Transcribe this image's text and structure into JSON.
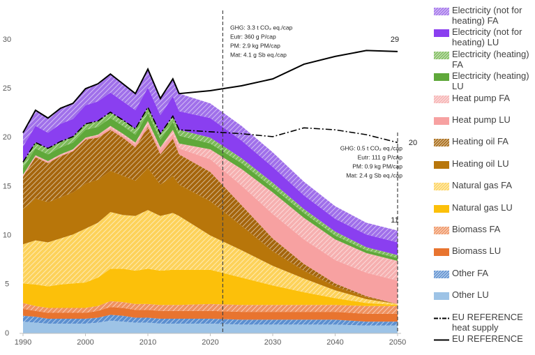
{
  "chart_data": {
    "type": "stacked-area",
    "x": [
      1990,
      1992,
      1994,
      1996,
      1998,
      2000,
      2002,
      2004,
      2006,
      2008,
      2010,
      2012,
      2014,
      2015,
      2020,
      2025,
      2030,
      2035,
      2040,
      2045,
      2050
    ],
    "xlim": [
      1990,
      2050
    ],
    "xticks": [
      1990,
      2000,
      2010,
      2020,
      2030,
      2040,
      2050
    ],
    "ylim": [
      0,
      30
    ],
    "yticks": [
      0,
      5,
      10,
      15,
      20,
      25,
      30
    ],
    "series": [
      {
        "name": "Other LU",
        "color": "#9dc3e6",
        "values": [
          1.2,
          1.1,
          1.0,
          1.0,
          1.0,
          1.0,
          1.1,
          1.3,
          1.2,
          1.1,
          1.1,
          1.0,
          1.0,
          1.0,
          1.0,
          0.9,
          0.9,
          0.9,
          0.9,
          0.8,
          0.8
        ]
      },
      {
        "name": "Other FA",
        "color": "#5b8fd0",
        "pattern": "hatch",
        "values": [
          0.6,
          0.6,
          0.5,
          0.5,
          0.5,
          0.5,
          0.5,
          0.6,
          0.6,
          0.5,
          0.5,
          0.5,
          0.5,
          0.5,
          0.5,
          0.5,
          0.5,
          0.5,
          0.5,
          0.4,
          0.4
        ]
      },
      {
        "name": "Biomass LU",
        "color": "#e8742f",
        "values": [
          0.7,
          0.6,
          0.6,
          0.6,
          0.6,
          0.6,
          0.7,
          0.8,
          0.8,
          0.8,
          0.8,
          0.8,
          0.8,
          0.8,
          0.8,
          0.8,
          0.8,
          0.8,
          0.8,
          0.8,
          0.8
        ]
      },
      {
        "name": "Biomass FA",
        "color": "#ef9260",
        "pattern": "hatch",
        "values": [
          0.6,
          0.5,
          0.5,
          0.5,
          0.5,
          0.5,
          0.5,
          0.6,
          0.6,
          0.6,
          0.6,
          0.6,
          0.6,
          0.6,
          0.7,
          0.7,
          0.7,
          0.7,
          0.7,
          0.8,
          0.8
        ]
      },
      {
        "name": "Natural gas LU",
        "color": "#fcc00a",
        "values": [
          2.0,
          2.2,
          2.2,
          2.4,
          2.5,
          2.6,
          2.9,
          3.3,
          3.4,
          3.4,
          3.6,
          3.5,
          3.6,
          3.6,
          3.5,
          2.8,
          2.0,
          1.3,
          0.7,
          0.3,
          0.1
        ]
      },
      {
        "name": "Natural gas FA",
        "color": "#fdd25a",
        "pattern": "hatch",
        "values": [
          4.0,
          4.5,
          4.5,
          4.7,
          5.0,
          5.5,
          5.6,
          5.8,
          5.5,
          5.6,
          6.0,
          5.6,
          5.8,
          5.5,
          3.5,
          2.8,
          2.0,
          1.4,
          0.8,
          0.4,
          0.1
        ]
      },
      {
        "name": "Heating oil LU",
        "color": "#b8760a",
        "values": [
          3.6,
          4.3,
          4.1,
          4.2,
          4.3,
          4.6,
          4.4,
          4.2,
          4.0,
          3.6,
          4.3,
          3.2,
          3.8,
          3.2,
          3.5,
          2.5,
          1.5,
          0.8,
          0.4,
          0.2,
          0.0
        ]
      },
      {
        "name": "Heating oil FA",
        "color": "#a5650c",
        "pattern": "hatch",
        "values": [
          3.3,
          4.2,
          4.0,
          4.2,
          4.2,
          4.5,
          4.3,
          4.2,
          3.9,
          3.4,
          4.2,
          3.1,
          3.8,
          3.1,
          3.0,
          2.1,
          1.3,
          0.7,
          0.3,
          0.1,
          0.0
        ]
      },
      {
        "name": "Heat pump LU",
        "color": "#f7a1a1",
        "values": [
          0.1,
          0.1,
          0.1,
          0.1,
          0.1,
          0.1,
          0.2,
          0.2,
          0.2,
          0.3,
          0.3,
          0.4,
          0.5,
          0.6,
          1.3,
          2.0,
          2.5,
          2.5,
          2.4,
          2.4,
          2.4
        ]
      },
      {
        "name": "Heat pump FA",
        "color": "#f6b0b0",
        "pattern": "hatch",
        "values": [
          0.1,
          0.1,
          0.1,
          0.1,
          0.1,
          0.1,
          0.1,
          0.2,
          0.2,
          0.2,
          0.3,
          0.3,
          0.4,
          0.5,
          1.0,
          1.7,
          2.2,
          2.2,
          2.1,
          2.0,
          2.0
        ]
      },
      {
        "name": "Electricity (heating) LU",
        "color": "#5fa83a",
        "values": [
          0.7,
          0.7,
          0.7,
          0.7,
          0.7,
          0.8,
          0.8,
          0.8,
          0.8,
          0.8,
          0.8,
          0.8,
          0.8,
          0.8,
          0.6,
          0.6,
          0.5,
          0.5,
          0.4,
          0.3,
          0.3
        ]
      },
      {
        "name": "Electricity (heating) FA",
        "color": "#7dbb5a",
        "pattern": "hatch",
        "values": [
          0.6,
          0.6,
          0.6,
          0.6,
          0.6,
          0.6,
          0.6,
          0.6,
          0.6,
          0.6,
          0.6,
          0.6,
          0.6,
          0.6,
          0.6,
          0.5,
          0.5,
          0.4,
          0.4,
          0.3,
          0.3
        ]
      },
      {
        "name": "Electricity (not for heating) LU",
        "color": "#8a3ff0",
        "values": [
          1.6,
          1.7,
          1.6,
          1.8,
          1.8,
          1.9,
          2.0,
          2.0,
          1.9,
          1.9,
          2.0,
          1.9,
          2.0,
          1.9,
          2.0,
          1.8,
          1.6,
          1.4,
          1.3,
          1.3,
          1.3
        ]
      },
      {
        "name": "Electricity (not for heating) FA",
        "color": "#a070ea",
        "pattern": "hatch",
        "values": [
          1.4,
          1.6,
          1.5,
          1.6,
          1.6,
          1.7,
          1.8,
          1.9,
          1.8,
          1.7,
          1.9,
          1.7,
          1.8,
          1.8,
          1.5,
          1.5,
          1.5,
          1.4,
          1.3,
          1.2,
          1.2
        ]
      }
    ],
    "lines": [
      {
        "name": "EU REFERENCE heat supply",
        "color": "#000000",
        "style": "dashdot",
        "values": [
          17.5,
          19.5,
          18.9,
          19.6,
          20.1,
          21.4,
          21.7,
          22.6,
          21.8,
          20.9,
          23.1,
          20.4,
          22.2,
          20.8,
          20.6,
          20.4,
          20.1,
          21.0,
          20.8,
          20.3,
          19.5
        ]
      },
      {
        "name": "EU REFERENCE",
        "color": "#000000",
        "style": "solid",
        "values": [
          20.5,
          22.8,
          22,
          23,
          23.5,
          25,
          25.5,
          26.5,
          25.5,
          24.5,
          27,
          24,
          26,
          24.5,
          24.8,
          25.3,
          26,
          27.5,
          28.3,
          28.9,
          28.8
        ]
      }
    ],
    "reference_lines_x": [
      2022,
      2050
    ],
    "annotations": {
      "today": [
        "GHG: 3.3 t CO₂ eq./cap",
        "Eutr: 360 g P/cap",
        "PM: 2.9 kg PM/cap",
        "Mat: 4.1 g Sb eq./cap"
      ],
      "target": [
        "GHG: 0.5 t CO₂ eq./cap",
        "Eutr: 111 g P/cap",
        "PM: 0.9 kg PM/cap",
        "Mat: 2.4 g Sb eq./cap"
      ],
      "end_labels": [
        "29",
        "20",
        "11"
      ]
    }
  }
}
